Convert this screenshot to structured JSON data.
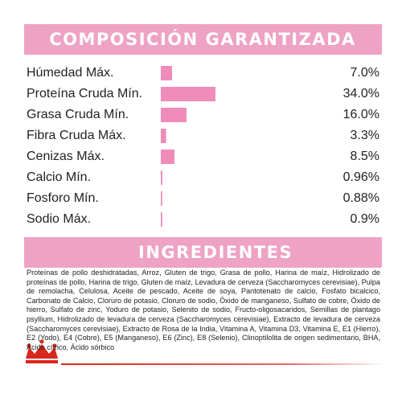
{
  "header": {
    "title": "COMPOSICIÓN GARANTIZADA"
  },
  "chart_data": {
    "type": "bar",
    "orientation": "horizontal",
    "color": "#f08cb9",
    "categories": [
      "Húmedad Máx.",
      "Proteína Cruda Mín.",
      "Grasa Cruda Mín.",
      "Fibra Cruda Máx.",
      "Cenizas Máx.",
      "Calcio Mín.",
      "Fosforo Mín.",
      "Sodio Máx."
    ],
    "values": [
      7.0,
      34.0,
      16.0,
      3.3,
      8.5,
      0.96,
      0.88,
      0.9
    ],
    "value_labels": [
      "7.0%",
      "34.0%",
      "16.0%",
      "3.3%",
      "8.5%",
      "0.96%",
      "0.88%",
      "0.9%"
    ]
  },
  "ingredients": {
    "title": "INGREDIENTES",
    "text": "Proteínas de pollo deshidratadas, Arroz, Gluten de trigo, Grasa de pollo, Harina de maíz, Hidrolizado de proteínas de pollo, Harina de trigo, Gluten de maíz, Levadura de cerveza (Saccharomyces cerevisiae), Pulpa de remolacha, Celulosa, Aceite de pescado, Aceite de soya, Pantotenato de calcio, Fosfato bicalcico, Carbonato de Calcio, Cloruro de potasio, Cloruro de sodio, Óxido de manganeso, Sulfato de cobre, Óxido de hierro, Sulfato de zinc, Yoduro de potasio, Selenito de sodio, Fructo-oligosacaridos, Semillas de plantago psyllium, Hidrolizado de levadura de cerveza (Saccharomyces cerevisiae), Extracto de levadura de cerveza (Saccharomyces cerevisiae), Extracto de Rosa de la India, Vitamina A, Vitamina D3, Vitamina E, E1 (Hierro), E2 (Yodo), E4 (Cobre), E5 (Manganeso), E6 (Zinc), E8 (Selenio), Clinoptilolita de origen sedimentario, BHA, Ácido cítrico, Ácido sórbico"
  }
}
